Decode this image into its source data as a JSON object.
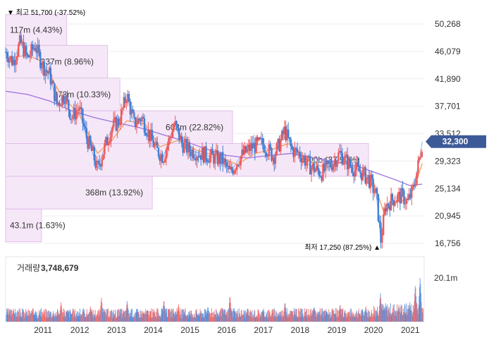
{
  "chart_data": {
    "type": "line",
    "price_range": [
      16756,
      50268
    ],
    "y_ticks": [
      "50,268",
      "46,079",
      "41,890",
      "37,701",
      "33,512",
      "29,323",
      "25,134",
      "20,945",
      "16,756"
    ],
    "x_ticks": [
      "2011",
      "2012",
      "2013",
      "2014",
      "2015",
      "2016",
      "2017",
      "2018",
      "2019",
      "2020",
      "2021"
    ],
    "current_price_label": "32,300",
    "current_price": 32300,
    "high_label": "▼ 최고 51,700 (-37.52%)",
    "low_label": "최저 17,250 (87.25%) ▲",
    "price_series": [
      {
        "t": 2010.0,
        "y": 46000
      },
      {
        "t": 2010.2,
        "y": 44500
      },
      {
        "t": 2010.4,
        "y": 47500
      },
      {
        "t": 2010.6,
        "y": 45000
      },
      {
        "t": 2010.8,
        "y": 47000
      },
      {
        "t": 2011.0,
        "y": 44000
      },
      {
        "t": 2011.2,
        "y": 42500
      },
      {
        "t": 2011.4,
        "y": 38000
      },
      {
        "t": 2011.6,
        "y": 39500
      },
      {
        "t": 2011.8,
        "y": 36000
      },
      {
        "t": 2012.0,
        "y": 37500
      },
      {
        "t": 2012.2,
        "y": 33000
      },
      {
        "t": 2012.4,
        "y": 30000
      },
      {
        "t": 2012.5,
        "y": 28000
      },
      {
        "t": 2012.7,
        "y": 31500
      },
      {
        "t": 2012.9,
        "y": 34500
      },
      {
        "t": 2013.1,
        "y": 35500
      },
      {
        "t": 2013.3,
        "y": 39500
      },
      {
        "t": 2013.5,
        "y": 35000
      },
      {
        "t": 2013.7,
        "y": 36000
      },
      {
        "t": 2013.9,
        "y": 33500
      },
      {
        "t": 2014.1,
        "y": 31000
      },
      {
        "t": 2014.3,
        "y": 30000
      },
      {
        "t": 2014.6,
        "y": 35000
      },
      {
        "t": 2014.8,
        "y": 32000
      },
      {
        "t": 2015.0,
        "y": 31000
      },
      {
        "t": 2015.3,
        "y": 30500
      },
      {
        "t": 2015.6,
        "y": 30000
      },
      {
        "t": 2015.9,
        "y": 29500
      },
      {
        "t": 2016.1,
        "y": 27500
      },
      {
        "t": 2016.4,
        "y": 30000
      },
      {
        "t": 2016.7,
        "y": 31500
      },
      {
        "t": 2017.0,
        "y": 32000
      },
      {
        "t": 2017.3,
        "y": 30000
      },
      {
        "t": 2017.5,
        "y": 32500
      },
      {
        "t": 2017.6,
        "y": 34000
      },
      {
        "t": 2017.8,
        "y": 31000
      },
      {
        "t": 2018.0,
        "y": 30500
      },
      {
        "t": 2018.3,
        "y": 28500
      },
      {
        "t": 2018.6,
        "y": 27500
      },
      {
        "t": 2018.9,
        "y": 29000
      },
      {
        "t": 2019.1,
        "y": 30500
      },
      {
        "t": 2019.4,
        "y": 28500
      },
      {
        "t": 2019.7,
        "y": 27500
      },
      {
        "t": 2019.9,
        "y": 26500
      },
      {
        "t": 2020.1,
        "y": 24000
      },
      {
        "t": 2020.22,
        "y": 17250
      },
      {
        "t": 2020.35,
        "y": 22500
      },
      {
        "t": 2020.55,
        "y": 23500
      },
      {
        "t": 2020.8,
        "y": 24000
      },
      {
        "t": 2020.95,
        "y": 23000
      },
      {
        "t": 2021.1,
        "y": 25000
      },
      {
        "t": 2021.25,
        "y": 29000
      },
      {
        "t": 2021.35,
        "y": 32300
      }
    ],
    "ma_short": [
      {
        "t": 2010.0,
        "y": 45000
      },
      {
        "t": 2010.6,
        "y": 45500
      },
      {
        "t": 2011.0,
        "y": 44500
      },
      {
        "t": 2011.5,
        "y": 39500
      },
      {
        "t": 2012.0,
        "y": 36500
      },
      {
        "t": 2012.5,
        "y": 30500
      },
      {
        "t": 2012.9,
        "y": 32500
      },
      {
        "t": 2013.3,
        "y": 35500
      },
      {
        "t": 2013.8,
        "y": 35000
      },
      {
        "t": 2014.2,
        "y": 31500
      },
      {
        "t": 2014.7,
        "y": 32500
      },
      {
        "t": 2015.2,
        "y": 31000
      },
      {
        "t": 2015.8,
        "y": 30000
      },
      {
        "t": 2016.3,
        "y": 28800
      },
      {
        "t": 2016.8,
        "y": 30500
      },
      {
        "t": 2017.3,
        "y": 31200
      },
      {
        "t": 2017.7,
        "y": 32000
      },
      {
        "t": 2018.2,
        "y": 29500
      },
      {
        "t": 2018.7,
        "y": 28300
      },
      {
        "t": 2019.2,
        "y": 29200
      },
      {
        "t": 2019.7,
        "y": 27800
      },
      {
        "t": 2020.0,
        "y": 26500
      },
      {
        "t": 2020.3,
        "y": 21500
      },
      {
        "t": 2020.6,
        "y": 23000
      },
      {
        "t": 2020.95,
        "y": 23500
      },
      {
        "t": 2021.2,
        "y": 26500
      },
      {
        "t": 2021.35,
        "y": 29000
      }
    ],
    "ma_long": [
      {
        "t": 2010.0,
        "y": 40000
      },
      {
        "t": 2010.6,
        "y": 39500
      },
      {
        "t": 2011.2,
        "y": 38500
      },
      {
        "t": 2011.8,
        "y": 37000
      },
      {
        "t": 2012.4,
        "y": 36000
      },
      {
        "t": 2013.0,
        "y": 35200
      },
      {
        "t": 2013.6,
        "y": 34500
      },
      {
        "t": 2014.2,
        "y": 33500
      },
      {
        "t": 2014.8,
        "y": 32500
      },
      {
        "t": 2015.4,
        "y": 31300
      },
      {
        "t": 2016.0,
        "y": 30200
      },
      {
        "t": 2016.6,
        "y": 29800
      },
      {
        "t": 2017.2,
        "y": 30200
      },
      {
        "t": 2017.8,
        "y": 30500
      },
      {
        "t": 2018.4,
        "y": 29800
      },
      {
        "t": 2019.0,
        "y": 29200
      },
      {
        "t": 2019.6,
        "y": 28500
      },
      {
        "t": 2020.1,
        "y": 27500
      },
      {
        "t": 2020.6,
        "y": 26500
      },
      {
        "t": 2021.0,
        "y": 25600
      },
      {
        "t": 2021.35,
        "y": 25800
      }
    ],
    "volume_profile": [
      {
        "label": "117m (4.43%)",
        "y_top": 51700,
        "y_bottom": 47000,
        "share": 4.43
      },
      {
        "label": "237m (8.96%)",
        "y_top": 47000,
        "y_bottom": 42000,
        "share": 8.96
      },
      {
        "label": "273m (10.33%)",
        "y_top": 42000,
        "y_bottom": 37000,
        "share": 10.33
      },
      {
        "label": "603m (22.82%)",
        "y_top": 37000,
        "y_bottom": 32000,
        "share": 22.82
      },
      {
        "label": "1.00b (37.90%)",
        "y_top": 32000,
        "y_bottom": 27000,
        "share": 37.9
      },
      {
        "label": "368m (13.92%)",
        "y_top": 27000,
        "y_bottom": 22000,
        "share": 13.92
      },
      {
        "label": "43.1m (1.63%)",
        "y_top": 22000,
        "y_bottom": 17000,
        "share": 1.63
      }
    ],
    "volume_title": "거래량",
    "volume_value": "3,748,679",
    "volume_axis_label": "20.1m",
    "volume_max": 20100000,
    "volume_peaks": [
      {
        "t": 2010.2,
        "v": 6000000
      },
      {
        "t": 2010.8,
        "v": 5000000
      },
      {
        "t": 2011.5,
        "v": 9000000
      },
      {
        "t": 2012.3,
        "v": 7000000
      },
      {
        "t": 2012.6,
        "v": 11000000
      },
      {
        "t": 2013.3,
        "v": 9500000
      },
      {
        "t": 2014.3,
        "v": 10000000
      },
      {
        "t": 2014.7,
        "v": 8000000
      },
      {
        "t": 2015.5,
        "v": 7000000
      },
      {
        "t": 2016.1,
        "v": 12000000
      },
      {
        "t": 2017.6,
        "v": 9000000
      },
      {
        "t": 2018.4,
        "v": 6500000
      },
      {
        "t": 2019.1,
        "v": 8000000
      },
      {
        "t": 2019.8,
        "v": 7000000
      },
      {
        "t": 2020.2,
        "v": 13000000
      },
      {
        "t": 2020.7,
        "v": 7500000
      },
      {
        "t": 2021.0,
        "v": 9000000
      },
      {
        "t": 2021.15,
        "v": 17000000
      },
      {
        "t": 2021.28,
        "v": 20100000
      }
    ],
    "colors": {
      "up": "#ef5a5a",
      "down": "#3f7fd6",
      "ma_short": "#f29a55",
      "ma_long": "#a27be0",
      "profile_fill": "#f4e3f7",
      "profile_stroke": "#e0bfe8",
      "price_badge": "#3d5a98",
      "annotation": "#4a6aa8"
    }
  }
}
